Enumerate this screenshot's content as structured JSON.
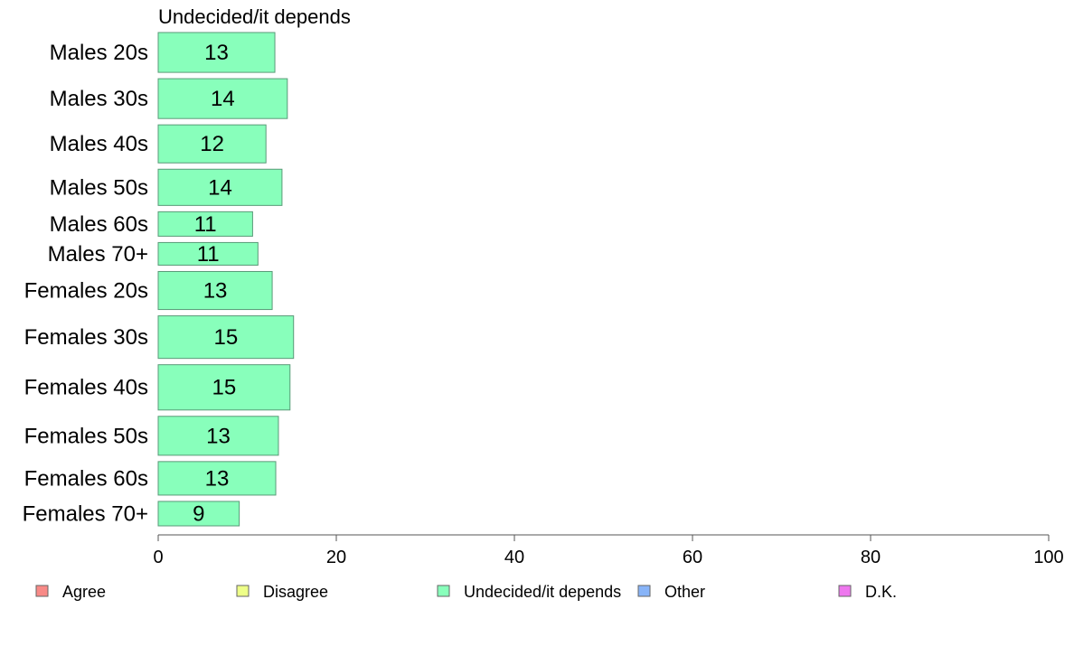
{
  "chart_data": {
    "type": "bar",
    "orientation": "horizontal",
    "panel_title": "Undecided/it depends",
    "categories": [
      "Males 20s",
      "Males 30s",
      "Males 40s",
      "Males 50s",
      "Males 60s",
      "Males 70+",
      "Females 20s",
      "Females 30s",
      "Females 40s",
      "Females 50s",
      "Females 60s",
      "Females 70+"
    ],
    "series": [
      {
        "name": "Undecided/it depends",
        "values": [
          13.1,
          14.5,
          12.1,
          13.9,
          10.6,
          11.2,
          12.8,
          15.2,
          14.8,
          13.5,
          13.2,
          9.1
        ],
        "labels": [
          "13",
          "14",
          "12",
          "14",
          "11",
          "11",
          "13",
          "15",
          "15",
          "13",
          "13",
          "9"
        ],
        "relative_bar_thickness": [
          44,
          44,
          42,
          40,
          27,
          25,
          42,
          47,
          50,
          43,
          37,
          27
        ]
      }
    ],
    "xlim": [
      0,
      100
    ],
    "xticks": [
      0,
      20,
      40,
      60,
      80,
      100
    ],
    "xtick_labels": [
      "0",
      "20",
      "40",
      "60",
      "80",
      "100"
    ],
    "legend": {
      "position": "bottom",
      "items": [
        {
          "label": "Agree",
          "color": "#f88a87"
        },
        {
          "label": "Disagree",
          "color": "#eeff88"
        },
        {
          "label": "Undecided/it depends",
          "color": "#88ffbb"
        },
        {
          "label": "Other",
          "color": "#88b4f8"
        },
        {
          "label": "D.K.",
          "color": "#ee77ee"
        }
      ]
    },
    "bar_color": "#88ffbb",
    "bar_edge_color": "#5a9a78",
    "grid": false
  }
}
